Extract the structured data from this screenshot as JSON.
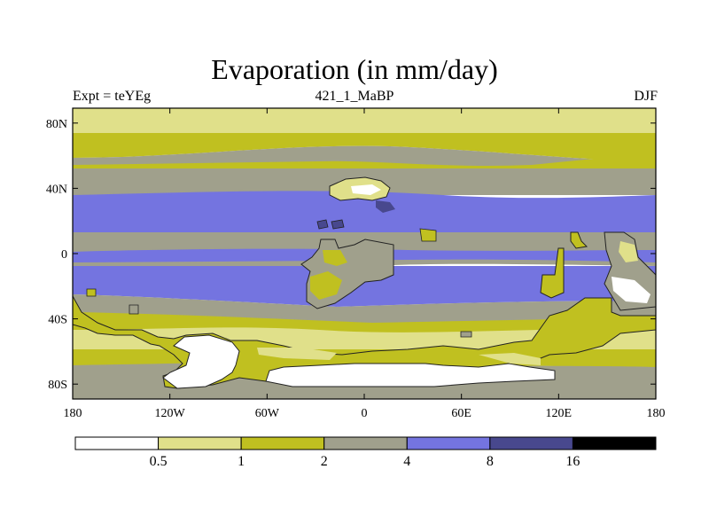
{
  "title": "Evaporation (in mm/day)",
  "subtitle_left": "Expt = teYEg",
  "subtitle_center": "421_1_MaBP",
  "subtitle_right": "DJF",
  "y_ticks": [
    {
      "label": "80N",
      "lat": 80
    },
    {
      "label": "40N",
      "lat": 40
    },
    {
      "label": "0",
      "lat": 0
    },
    {
      "label": "40S",
      "lat": -40
    },
    {
      "label": "80S",
      "lat": -80
    }
  ],
  "x_ticks": [
    {
      "label": "180",
      "lon": -180
    },
    {
      "label": "120W",
      "lon": -120
    },
    {
      "label": "60W",
      "lon": -60
    },
    {
      "label": "0",
      "lon": 0
    },
    {
      "label": "60E",
      "lon": 60
    },
    {
      "label": "120E",
      "lon": 120
    },
    {
      "label": "180",
      "lon": 180
    }
  ],
  "colorbar": {
    "colors": [
      "#ffffff",
      "#e0e08a",
      "#c0c020",
      "#a0a08c",
      "#7474e0",
      "#48488e",
      "#000000"
    ],
    "labels": [
      "0.5",
      "1",
      "2",
      "4",
      "8",
      "16"
    ]
  },
  "colors": {
    "c0": "#ffffff",
    "c1": "#e0e08a",
    "c2": "#c0c020",
    "c3": "#a0a08c",
    "c4": "#7474e0",
    "c5": "#48488e"
  }
}
